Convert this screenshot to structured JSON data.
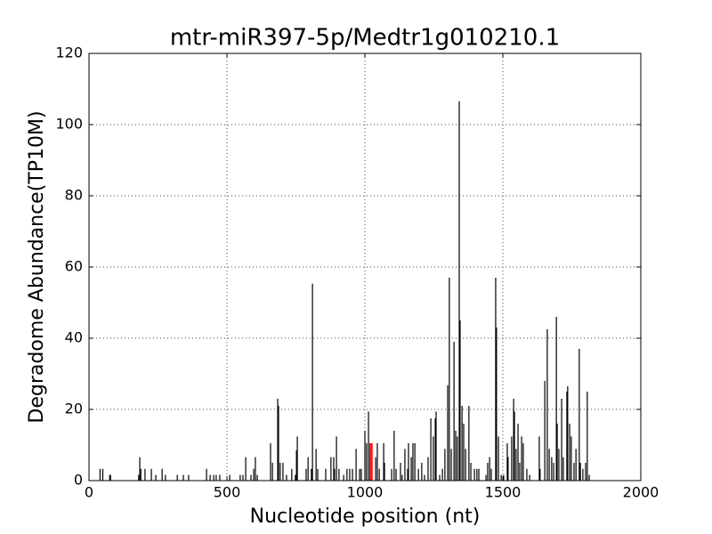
{
  "chart_data": {
    "type": "stem",
    "title": "mtr-miR397-5p/Medtr1g010210.1",
    "x_label": "Nucleotide position (nt)",
    "y_label": "Degradome Abundance(TP10M)",
    "xlim": [
      0,
      2000
    ],
    "xticks": [
      0,
      500,
      1000,
      1500,
      2000
    ],
    "ylim": [
      0,
      120
    ],
    "yticks": [
      0,
      20,
      40,
      60,
      80,
      100,
      120
    ],
    "grid": true,
    "series": [
      {
        "color": "#000000",
        "x": [
          40,
          50,
          75,
          78,
          180,
          184,
          188,
          203,
          226,
          242,
          265,
          277,
          320,
          342,
          361,
          426,
          439,
          452,
          461,
          474,
          510,
          548,
          558,
          568,
          587,
          597,
          603,
          610,
          658,
          665,
          684,
          687,
          693,
          703,
          716,
          735,
          748,
          755,
          752,
          787,
          794,
          810,
          806,
          823,
          829,
          858,
          877,
          887,
          897,
          890,
          906,
          923,
          935,
          945,
          955,
          968,
          981,
          987,
          1000,
          1006,
          1013,
          1039,
          1045,
          1052,
          1068,
          1071,
          1097,
          1106,
          1113,
          1129,
          1135,
          1145,
          1155,
          1158,
          1168,
          1174,
          1181,
          1194,
          1206,
          1216,
          1229,
          1239,
          1248,
          1255,
          1258,
          1271,
          1281,
          1290,
          1300,
          1306,
          1313,
          1323,
          1329,
          1335,
          1342,
          1345,
          1352,
          1358,
          1365,
          1377,
          1384,
          1397,
          1406,
          1413,
          1439,
          1445,
          1452,
          1458,
          1474,
          1477,
          1484,
          1494,
          1503,
          1516,
          1519,
          1532,
          1539,
          1542,
          1548,
          1555,
          1561,
          1568,
          1574,
          1587,
          1597,
          1632,
          1635,
          1652,
          1661,
          1668,
          1677,
          1684,
          1694,
          1697,
          1703,
          1713,
          1719,
          1732,
          1735,
          1742,
          1748,
          1758,
          1765,
          1777,
          1781,
          1790,
          1800,
          1806,
          1813
        ],
        "values": [
          3.3,
          3.3,
          1.6,
          1.6,
          1.6,
          6.6,
          3.3,
          3.3,
          3.3,
          1.6,
          3.3,
          1.6,
          1.6,
          1.6,
          1.6,
          3.3,
          1.6,
          1.6,
          1.6,
          1.6,
          1.6,
          1.6,
          1.6,
          6.6,
          1.6,
          3.3,
          6.6,
          1.6,
          10.5,
          5,
          23,
          21,
          5,
          5,
          1.6,
          3.3,
          1.6,
          12.4,
          8.5,
          3.3,
          6.6,
          55.3,
          3.3,
          8.9,
          3.3,
          3.3,
          6.6,
          6.6,
          12.4,
          3.3,
          3.3,
          1.6,
          3.3,
          3.3,
          3.3,
          8.9,
          3.3,
          3.3,
          14,
          10.5,
          19.4,
          6.6,
          10.5,
          3.3,
          10.5,
          5,
          3.3,
          14,
          3.3,
          5,
          1.6,
          8.9,
          3.3,
          10.5,
          6.6,
          10.5,
          10.5,
          3.3,
          5,
          1.6,
          6.6,
          17.5,
          12.4,
          17.5,
          19.4,
          1.6,
          3.3,
          8.9,
          26.8,
          57,
          8.9,
          39,
          14,
          12.4,
          106.6,
          45,
          21,
          16,
          8.9,
          21,
          5,
          3.3,
          3.3,
          3.3,
          1.6,
          5,
          6.6,
          3.3,
          57,
          43,
          12.4,
          1.6,
          1.6,
          10.5,
          6.6,
          12.4,
          23,
          19.4,
          8.9,
          16,
          5,
          12.4,
          10.5,
          3.3,
          1.6,
          12.4,
          3.3,
          28,
          42.5,
          8.9,
          6.6,
          5,
          46,
          16,
          8.9,
          23,
          6.6,
          25,
          26.5,
          16,
          12.4,
          5,
          8.9,
          37,
          5,
          3.3,
          5,
          25,
          1.6
        ]
      },
      {
        "color": "#ff0000",
        "x": [
          1018,
          1022,
          1026
        ],
        "values": [
          10.5,
          10.5,
          10.5
        ]
      }
    ]
  }
}
